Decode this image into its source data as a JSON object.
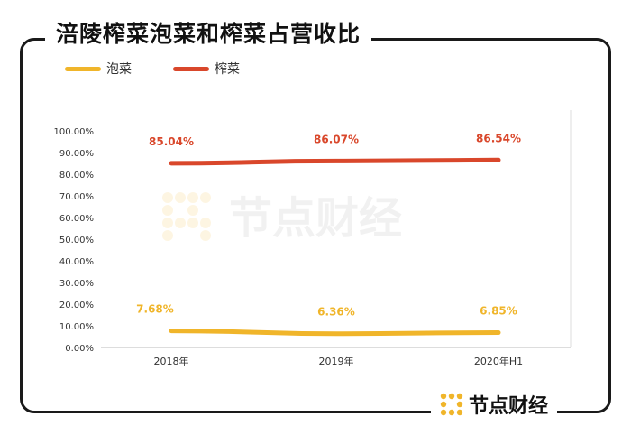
{
  "title": "涪陵榨菜泡菜和榨菜占营收比",
  "legend": [
    {
      "label": "泡菜",
      "color": "#F0B52A"
    },
    {
      "label": "榨菜",
      "color": "#D9472B"
    }
  ],
  "watermark": "节点财经",
  "brand": "节点财经",
  "chart_data": {
    "type": "line",
    "title": "涪陵榨菜泡菜和榨菜占营收比",
    "categories": [
      "2018年",
      "2019年",
      "2020年H1"
    ],
    "series": [
      {
        "name": "泡菜",
        "values": [
          7.68,
          6.36,
          6.85
        ],
        "labels": [
          "7.68%",
          "6.36%",
          "6.85%"
        ],
        "color": "#F0B52A"
      },
      {
        "name": "榨菜",
        "values": [
          85.04,
          86.07,
          86.54
        ],
        "labels": [
          "85.04%",
          "86.07%",
          "86.54%"
        ],
        "color": "#D9472B"
      }
    ],
    "ylim": [
      0,
      100
    ],
    "yticks": [
      "0.00%",
      "10.00%",
      "20.00%",
      "30.00%",
      "40.00%",
      "50.00%",
      "60.00%",
      "70.00%",
      "80.00%",
      "90.00%",
      "100.00%"
    ],
    "grid": false,
    "legend_position": "top-left"
  }
}
